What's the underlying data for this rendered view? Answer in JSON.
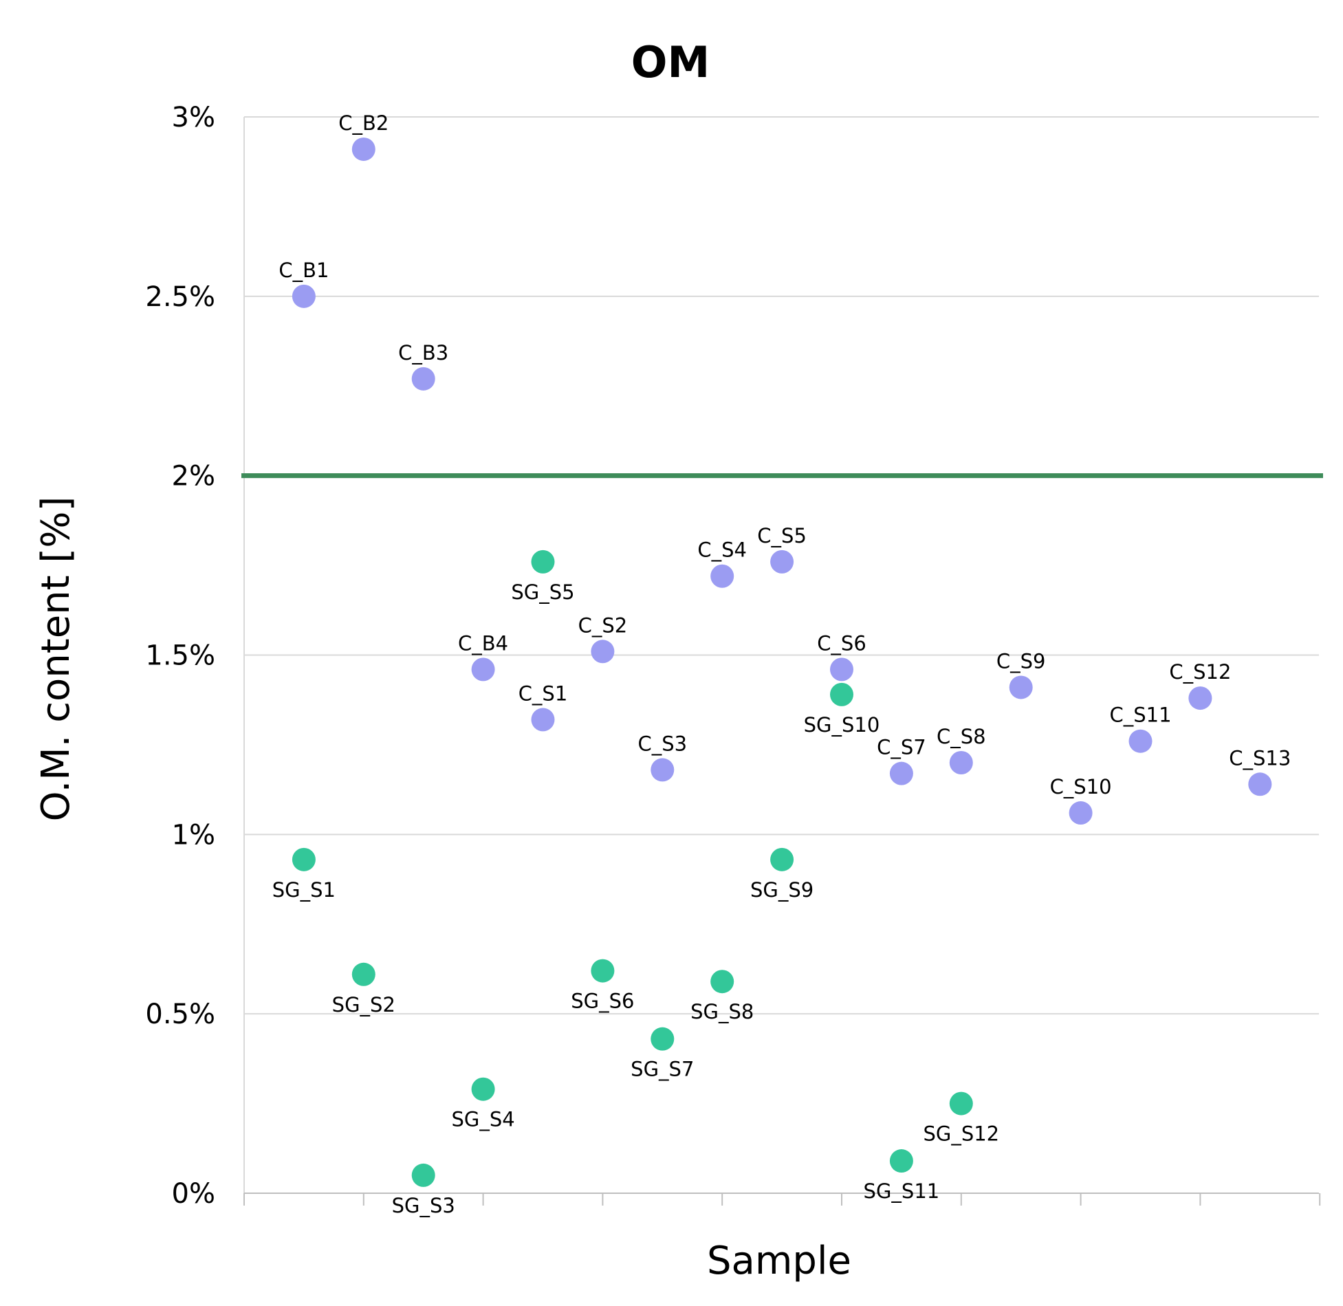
{
  "chart_data": {
    "type": "scatter",
    "title": "OM",
    "xlabel": "Sample",
    "ylabel": "O.M. content [%]",
    "ylim": [
      0,
      3
    ],
    "y_ticks": [
      0,
      0.5,
      1,
      1.5,
      2,
      2.5,
      3
    ],
    "y_tick_labels": [
      "0%",
      "0.5%",
      "1%",
      "1.5%",
      "2%",
      "2.5%",
      "3%"
    ],
    "x_positions": 18,
    "grid": true,
    "threshold": {
      "value": 2,
      "color": "#3e8c5a"
    },
    "series": [
      {
        "name": "C",
        "color": "#9b9cf2",
        "points": [
          {
            "label": "C_B1",
            "x": 1,
            "y": 2.5,
            "label_pos": "above"
          },
          {
            "label": "C_B2",
            "x": 2,
            "y": 2.91,
            "label_pos": "above"
          },
          {
            "label": "C_B3",
            "x": 3,
            "y": 2.27,
            "label_pos": "above"
          },
          {
            "label": "C_B4",
            "x": 4,
            "y": 1.46,
            "label_pos": "above"
          },
          {
            "label": "C_S1",
            "x": 5,
            "y": 1.32,
            "label_pos": "above"
          },
          {
            "label": "C_S2",
            "x": 6,
            "y": 1.51,
            "label_pos": "above"
          },
          {
            "label": "C_S3",
            "x": 7,
            "y": 1.18,
            "label_pos": "above"
          },
          {
            "label": "C_S4",
            "x": 8,
            "y": 1.72,
            "label_pos": "above"
          },
          {
            "label": "C_S5",
            "x": 9,
            "y": 1.76,
            "label_pos": "above"
          },
          {
            "label": "C_S6",
            "x": 10,
            "y": 1.46,
            "label_pos": "above"
          },
          {
            "label": "C_S7",
            "x": 11,
            "y": 1.17,
            "label_pos": "above"
          },
          {
            "label": "C_S8",
            "x": 12,
            "y": 1.2,
            "label_pos": "above"
          },
          {
            "label": "C_S9",
            "x": 13,
            "y": 1.41,
            "label_pos": "above"
          },
          {
            "label": "C_S10",
            "x": 14,
            "y": 1.06,
            "label_pos": "above"
          },
          {
            "label": "C_S11",
            "x": 15,
            "y": 1.26,
            "label_pos": "above"
          },
          {
            "label": "C_S12",
            "x": 16,
            "y": 1.38,
            "label_pos": "above"
          },
          {
            "label": "C_S13",
            "x": 17,
            "y": 1.14,
            "label_pos": "above"
          }
        ]
      },
      {
        "name": "SG",
        "color": "#33c799",
        "points": [
          {
            "label": "SG_S1",
            "x": 1,
            "y": 0.93,
            "label_pos": "below"
          },
          {
            "label": "SG_S2",
            "x": 2,
            "y": 0.61,
            "label_pos": "below"
          },
          {
            "label": "SG_S3",
            "x": 3,
            "y": 0.05,
            "label_pos": "below"
          },
          {
            "label": "SG_S4",
            "x": 4,
            "y": 0.29,
            "label_pos": "below"
          },
          {
            "label": "SG_S5",
            "x": 5,
            "y": 1.76,
            "label_pos": "below"
          },
          {
            "label": "SG_S6",
            "x": 6,
            "y": 0.62,
            "label_pos": "below"
          },
          {
            "label": "SG_S7",
            "x": 7,
            "y": 0.43,
            "label_pos": "below"
          },
          {
            "label": "SG_S8",
            "x": 8,
            "y": 0.59,
            "label_pos": "below"
          },
          {
            "label": "SG_S9",
            "x": 9,
            "y": 0.93,
            "label_pos": "below"
          },
          {
            "label": "SG_S10",
            "x": 10,
            "y": 1.39,
            "label_pos": "below"
          },
          {
            "label": "SG_S11",
            "x": 11,
            "y": 0.09,
            "label_pos": "below"
          },
          {
            "label": "SG_S12",
            "x": 12,
            "y": 0.25,
            "label_pos": "below"
          }
        ]
      }
    ]
  }
}
